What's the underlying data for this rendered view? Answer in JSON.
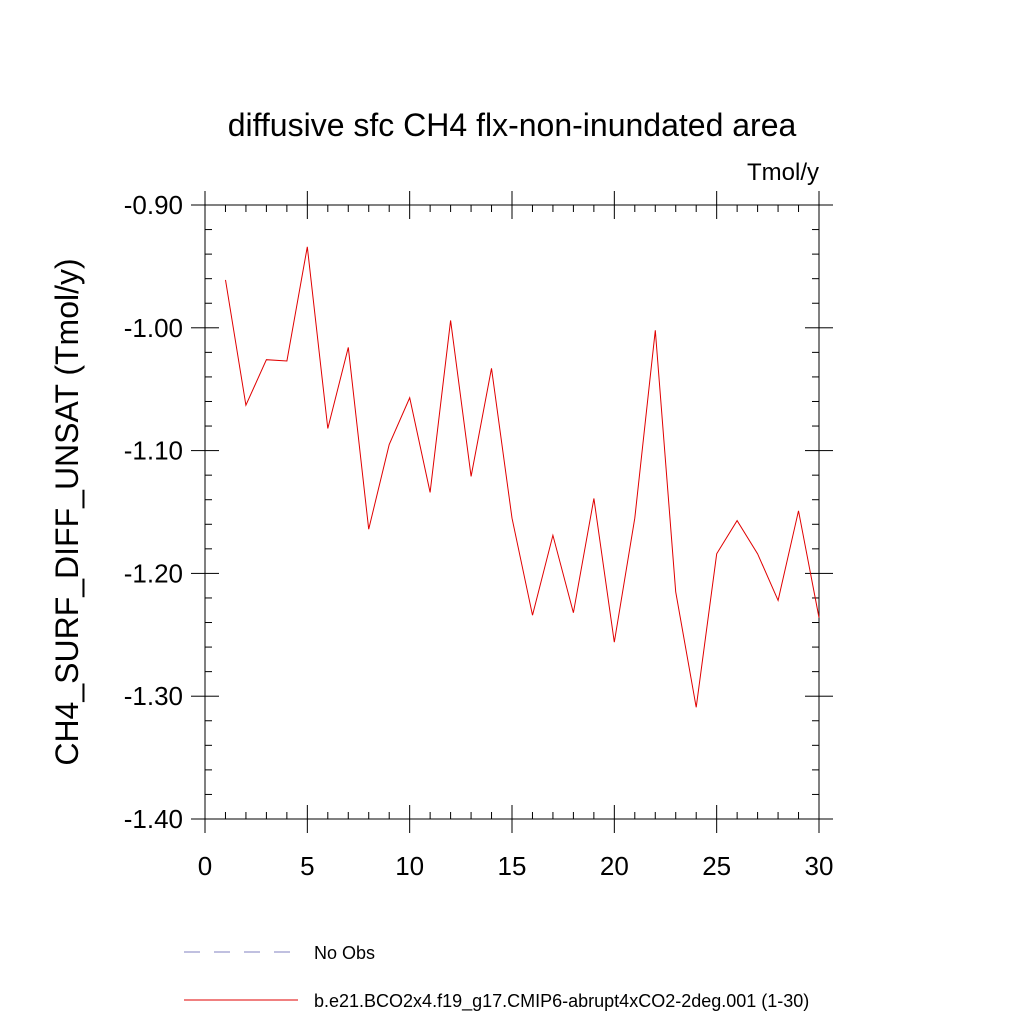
{
  "chart_data": {
    "type": "line",
    "title": "diffusive sfc CH4 flx-non-inundated area",
    "units": "Tmol/y",
    "xlabel": "",
    "ylabel": "CH4_SURF_DIFF_UNSAT  (Tmol/y)",
    "xlim": [
      0,
      30
    ],
    "ylim": [
      -1.4,
      -0.9
    ],
    "xticks": [
      0,
      5,
      10,
      15,
      20,
      25,
      30
    ],
    "xtick_labels": [
      "0",
      "5",
      "10",
      "15",
      "20",
      "25",
      "30"
    ],
    "yticks": [
      -0.9,
      -1.0,
      -1.1,
      -1.2,
      -1.3,
      -1.4
    ],
    "ytick_labels": [
      "-0.90",
      "-1.00",
      "-1.10",
      "-1.20",
      "-1.30",
      "-1.40"
    ],
    "grid": false,
    "legend_position": "bottom",
    "series": [
      {
        "name": "No Obs",
        "color": "#8080c0",
        "dashed": true,
        "x": [],
        "values": []
      },
      {
        "name": "b.e21.BCO2x4.f19_g17.CMIP6-abrupt4xCO2-2deg.001 (1-30)",
        "color": "#e00000",
        "dashed": false,
        "x": [
          1,
          2,
          3,
          4,
          5,
          6,
          7,
          8,
          9,
          10,
          11,
          12,
          13,
          14,
          15,
          16,
          17,
          18,
          19,
          20,
          21,
          22,
          23,
          24,
          25,
          26,
          27,
          28,
          29,
          30
        ],
        "values": [
          -0.961,
          -1.063,
          -1.026,
          -1.027,
          -0.934,
          -1.082,
          -1.016,
          -1.164,
          -1.095,
          -1.057,
          -1.134,
          -0.994,
          -1.121,
          -1.033,
          -1.155,
          -1.234,
          -1.169,
          -1.232,
          -1.139,
          -1.256,
          -1.155,
          -1.002,
          -1.215,
          -1.309,
          -1.184,
          -1.157,
          -1.184,
          -1.222,
          -1.149,
          -1.236
        ]
      }
    ]
  }
}
